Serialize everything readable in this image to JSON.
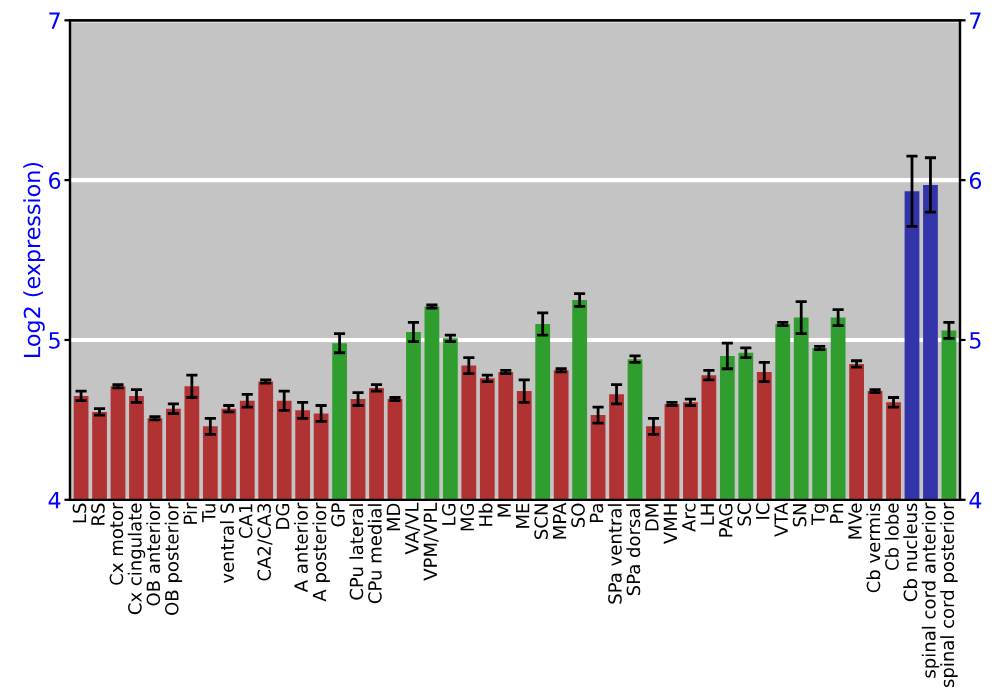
{
  "chart_data": {
    "type": "bar",
    "ylabel": "Log2 (expression)",
    "categories": [
      "LS",
      "RS",
      "Cx motor",
      "Cx cingulate",
      "OB anterior",
      "OB posterior",
      "Pir",
      "Tu",
      "ventral S",
      "CA1",
      "CA2/CA3",
      "DG",
      "A anterior",
      "A posterior",
      "GP",
      "CPu lateral",
      "CPu medial",
      "MD",
      "VA/VL",
      "VPM/VPL",
      "LG",
      "MG",
      "Hb",
      "M",
      "ME",
      "SCN",
      "MPA",
      "SO",
      "Pa",
      "SPa ventral",
      "SPa dorsal",
      "DM",
      "VMH",
      "Arc",
      "LH",
      "PAG",
      "SC",
      "IC",
      "VTA",
      "SN",
      "Tg",
      "Pn",
      "MVe",
      "Cb vermis",
      "Cb lobe",
      "Cb nucleus",
      "spinal cord anterior",
      "spinal cord posterior"
    ],
    "values": [
      4.65,
      4.55,
      4.71,
      4.65,
      4.51,
      4.57,
      4.71,
      4.46,
      4.57,
      4.62,
      4.74,
      4.62,
      4.56,
      4.54,
      4.98,
      4.63,
      4.7,
      4.63,
      5.05,
      5.21,
      5.01,
      4.84,
      4.76,
      4.8,
      4.68,
      5.1,
      4.81,
      5.25,
      4.53,
      4.66,
      4.88,
      4.46,
      4.6,
      4.61,
      4.78,
      4.9,
      4.92,
      4.8,
      5.1,
      5.14,
      4.95,
      5.14,
      4.85,
      4.68,
      4.61,
      5.93,
      5.97,
      5.06
    ],
    "errors": [
      0.03,
      0.02,
      0.01,
      0.04,
      0.01,
      0.03,
      0.07,
      0.05,
      0.02,
      0.04,
      0.01,
      0.06,
      0.05,
      0.05,
      0.06,
      0.04,
      0.02,
      0.01,
      0.06,
      0.01,
      0.02,
      0.05,
      0.02,
      0.01,
      0.07,
      0.07,
      0.01,
      0.04,
      0.05,
      0.06,
      0.02,
      0.05,
      0.01,
      0.02,
      0.03,
      0.08,
      0.03,
      0.06,
      0.01,
      0.1,
      0.01,
      0.05,
      0.02,
      0.01,
      0.03,
      0.22,
      0.17,
      0.05
    ],
    "colors": [
      "#b03232",
      "#b03232",
      "#b03232",
      "#b03232",
      "#b03232",
      "#b03232",
      "#b03232",
      "#b03232",
      "#b03232",
      "#b03232",
      "#b03232",
      "#b03232",
      "#b03232",
      "#b03232",
      "#2f9e2f",
      "#b03232",
      "#b03232",
      "#b03232",
      "#2f9e2f",
      "#2f9e2f",
      "#2f9e2f",
      "#b03232",
      "#b03232",
      "#b03232",
      "#b03232",
      "#2f9e2f",
      "#b03232",
      "#2f9e2f",
      "#b03232",
      "#b03232",
      "#2f9e2f",
      "#b03232",
      "#b03232",
      "#b03232",
      "#b03232",
      "#2f9e2f",
      "#2f9e2f",
      "#b03232",
      "#2f9e2f",
      "#2f9e2f",
      "#2f9e2f",
      "#2f9e2f",
      "#b03232",
      "#b03232",
      "#b03232",
      "#3434aa",
      "#3434aa",
      "#2f9e2f"
    ],
    "ylim": [
      4,
      7
    ],
    "yticks": [
      4,
      5,
      6,
      7
    ],
    "y2lim": [
      4,
      7
    ],
    "y2ticks": [
      4,
      5,
      6,
      7
    ],
    "grid": "y"
  }
}
